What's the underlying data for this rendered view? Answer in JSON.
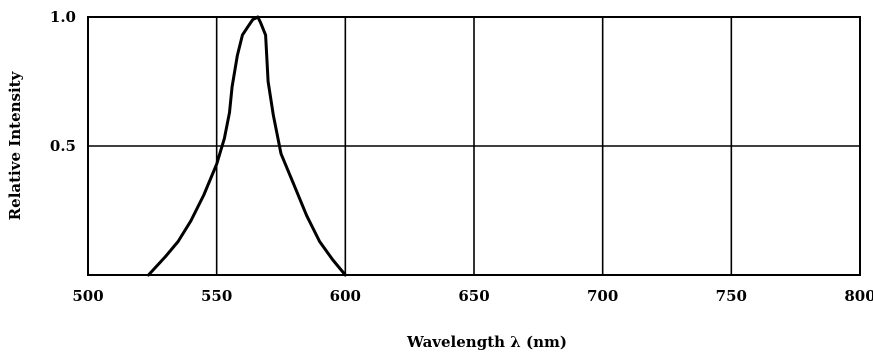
{
  "chart_data": {
    "type": "line",
    "title": "",
    "xlabel": "Wavelength λ (nm)",
    "ylabel": "Relative Intensity",
    "xlim": [
      500,
      800
    ],
    "ylim": [
      0,
      1.0
    ],
    "grid": true,
    "x_ticks": [
      {
        "value": 500,
        "label": "500"
      },
      {
        "value": 550,
        "label": "550"
      },
      {
        "value": 600,
        "label": "600"
      },
      {
        "value": 650,
        "label": "650"
      },
      {
        "value": 700,
        "label": "700"
      },
      {
        "value": 750,
        "label": "750"
      },
      {
        "value": 800,
        "label": "800"
      }
    ],
    "y_ticks": [
      {
        "value": 0.5,
        "label": "0.5"
      },
      {
        "value": 1.0,
        "label": "1.0"
      }
    ],
    "series": [
      {
        "color": "#000000",
        "x": [
          523.5,
          530,
          535,
          540,
          545,
          550,
          553,
          555,
          556,
          558,
          560,
          562,
          564,
          566,
          567,
          569,
          570,
          572,
          575,
          580,
          585,
          590,
          595,
          600
        ],
        "y": [
          0.0,
          0.07,
          0.13,
          0.21,
          0.31,
          0.43,
          0.53,
          0.63,
          0.73,
          0.85,
          0.93,
          0.96,
          0.99,
          1.0,
          0.98,
          0.93,
          0.75,
          0.62,
          0.47,
          0.35,
          0.23,
          0.13,
          0.06,
          0.0
        ]
      }
    ]
  }
}
